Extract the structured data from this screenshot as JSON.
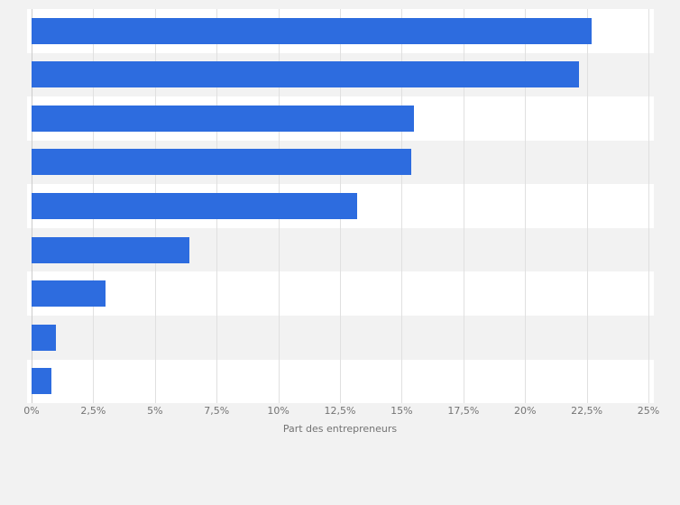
{
  "chart_data": {
    "type": "bar",
    "orientation": "horizontal",
    "title": "",
    "xlabel": "Part des entrepreneurs",
    "ylabel": "",
    "xlim": [
      0,
      25
    ],
    "categories": [
      "",
      "",
      "",
      "",
      "",
      "",
      "",
      "",
      ""
    ],
    "values": [
      22.7,
      22.2,
      15.5,
      15.4,
      13.2,
      6.4,
      3.0,
      1.0,
      0.8
    ],
    "tick_labels": [
      "0%",
      "2,5%",
      "5%",
      "7,5%",
      "10%",
      "12,5%",
      "15%",
      "17,5%",
      "20%",
      "22,5%",
      "25%"
    ],
    "tick_values": [
      0,
      2.5,
      5,
      7.5,
      10,
      12.5,
      15,
      17.5,
      20,
      22.5,
      25
    ],
    "grid": true,
    "legend": false,
    "colors": {
      "bar": "#2d6cdf",
      "background": "#f2f2f2",
      "band": "#ffffff",
      "gridline": "#e0e0e0",
      "axis_text": "#737373"
    }
  }
}
